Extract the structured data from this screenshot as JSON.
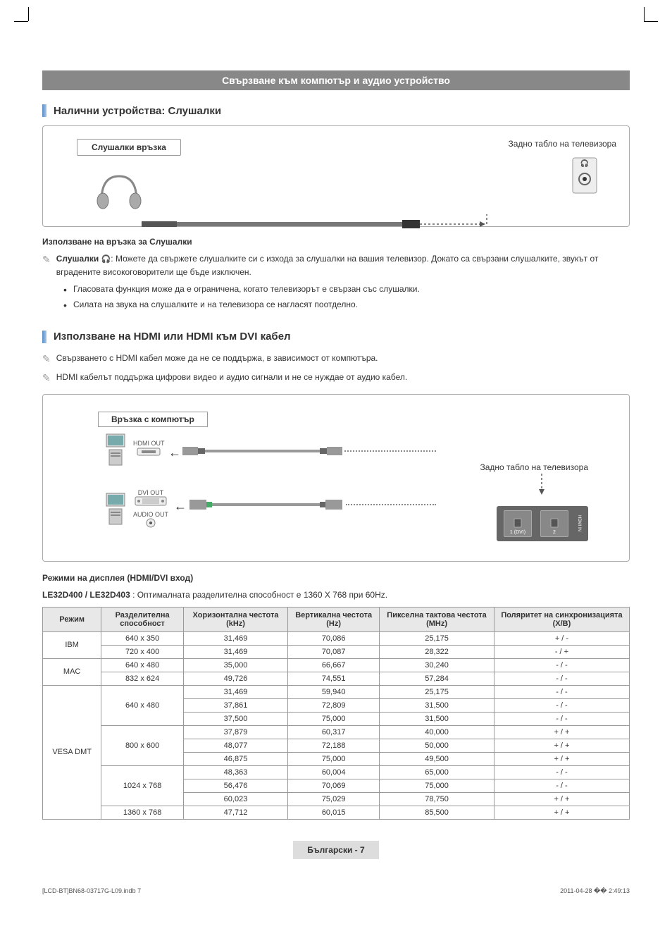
{
  "banner": {
    "title": "Свързване към компютър и аудио устройство"
  },
  "sections": {
    "headphones": {
      "heading": "Налични устройства: Слушалки",
      "diagram": {
        "connection_label": "Слушалки връзка",
        "rear_label": "Задно табло на телевизора"
      },
      "usage_heading": "Използване на връзка за Слушалки",
      "note_prefix": "Слушалки",
      "note_text": ": Можете да свържете слушалките си с изхода за слушалки на вашия телевизор. Докато са свързани слушалките, звукът от вградените високоговорители ще бъде изключен.",
      "bullets": [
        "Гласовата функция може да е ограничена, когато телевизорът е свързан със слушалки.",
        "Силата на звука на слушалките и на телевизора се нагласят поотделно."
      ]
    },
    "hdmi": {
      "heading": "Използване на HDMI или HDMI към DVI кабел",
      "notes": [
        "Свързването с HDMI кабел може да не се поддържа, в зависимост от компютъра.",
        "HDMI кабелът поддържа цифрови видео и аудио сигнали и не се нуждае от аудио кабел."
      ],
      "diagram": {
        "pc_label": "Връзка с компютър",
        "hdmi_out": "HDMI OUT",
        "dvi_out": "DVI OUT",
        "audio_out": "AUDIO OUT",
        "rear_label": "Задно табло на телевизора",
        "port1": "1 (DVI)",
        "port2": "2",
        "port_side": "HDMI IN"
      },
      "modes_heading": "Режими на дисплея (HDMI/DVI вход)",
      "model_bold": "LE32D400 / LE32D403",
      "model_text": " : Оптималната разделителна способност е 1360 X 768 при 60Hz."
    }
  },
  "table": {
    "headers": [
      "Режим",
      "Разделителна способност",
      "Хоризонтална честота (kHz)",
      "Вертикална честота (Hz)",
      "Пикселна тактова честота (MHz)",
      "Поляритет на синхронизацията (Х/В)"
    ],
    "groups": [
      {
        "mode": "IBM",
        "rows": [
          [
            "640 x 350",
            "31,469",
            "70,086",
            "25,175",
            "+ / -"
          ],
          [
            "720 x 400",
            "31,469",
            "70,087",
            "28,322",
            "- / +"
          ]
        ]
      },
      {
        "mode": "MAC",
        "rows": [
          [
            "640 x 480",
            "35,000",
            "66,667",
            "30,240",
            "- / -"
          ],
          [
            "832 x 624",
            "49,726",
            "74,551",
            "57,284",
            "- / -"
          ]
        ]
      },
      {
        "mode": "VESA DMT",
        "subgroups": [
          {
            "res": "640 x 480",
            "rows": [
              [
                "31,469",
                "59,940",
                "25,175",
                "- / -"
              ],
              [
                "37,861",
                "72,809",
                "31,500",
                "- / -"
              ],
              [
                "37,500",
                "75,000",
                "31,500",
                "- / -"
              ]
            ]
          },
          {
            "res": "800 x 600",
            "rows": [
              [
                "37,879",
                "60,317",
                "40,000",
                "+ / +"
              ],
              [
                "48,077",
                "72,188",
                "50,000",
                "+ / +"
              ],
              [
                "46,875",
                "75,000",
                "49,500",
                "+ / +"
              ]
            ]
          },
          {
            "res": "1024 x 768",
            "rows": [
              [
                "48,363",
                "60,004",
                "65,000",
                "- / -"
              ],
              [
                "56,476",
                "70,069",
                "75,000",
                "- / -"
              ],
              [
                "60,023",
                "75,029",
                "78,750",
                "+ / +"
              ]
            ]
          },
          {
            "res": "1360 x 768",
            "rows": [
              [
                "47,712",
                "60,015",
                "85,500",
                "+ / +"
              ]
            ]
          }
        ]
      }
    ]
  },
  "footer": {
    "page_label": "Български - 7",
    "doc_left": "[LCD-BT]BN68-03717G-L09.indb   7",
    "doc_right": "2011-04-28   �� 2:49:13"
  },
  "colors": {
    "banner_bg": "#888888",
    "accent_blue": "#5b8fc7",
    "table_header_bg": "#e8e8e8",
    "border": "#999999"
  }
}
